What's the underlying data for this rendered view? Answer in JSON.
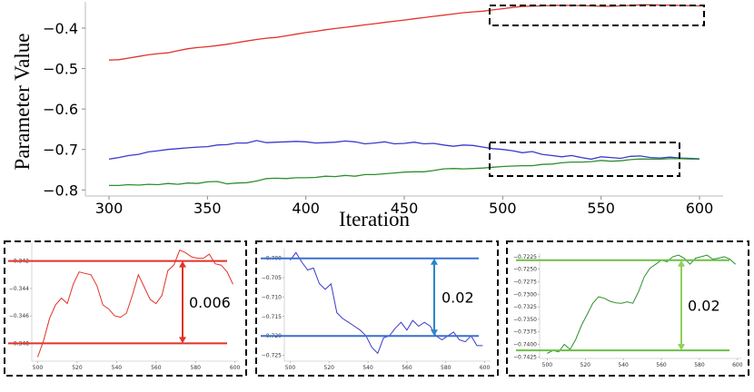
{
  "chart_data": [
    {
      "type": "line",
      "xlabel": "Iteration",
      "ylabel": "Parameter Value",
      "xlim": [
        288,
        612
      ],
      "ylim": [
        -0.815,
        -0.335
      ],
      "xticks": [
        300,
        350,
        400,
        450,
        500,
        550,
        600
      ],
      "yticks": [
        -0.4,
        -0.5,
        -0.6,
        -0.7,
        -0.8
      ],
      "ytick_labels": [
        "−0.4",
        "−0.5",
        "−0.6",
        "−0.7",
        "−0.8"
      ],
      "grid": false,
      "legend": "none",
      "series": [
        {
          "color": "#e0332a",
          "x": [
            300,
            305,
            310,
            315,
            320,
            325,
            330,
            335,
            340,
            345,
            350,
            355,
            360,
            365,
            370,
            375,
            380,
            385,
            390,
            395,
            400,
            405,
            410,
            415,
            420,
            425,
            430,
            435,
            440,
            445,
            450,
            455,
            460,
            465,
            470,
            475,
            480,
            485,
            490,
            495,
            500,
            505,
            510,
            515,
            520,
            525,
            530,
            535,
            540,
            545,
            550,
            555,
            560,
            565,
            570,
            575,
            580,
            585,
            590,
            595,
            600
          ],
          "values": [
            -0.479,
            -0.478,
            -0.474,
            -0.47,
            -0.466,
            -0.463,
            -0.461,
            -0.456,
            -0.451,
            -0.448,
            -0.446,
            -0.443,
            -0.44,
            -0.436,
            -0.432,
            -0.428,
            -0.425,
            -0.423,
            -0.419,
            -0.415,
            -0.411,
            -0.408,
            -0.404,
            -0.401,
            -0.398,
            -0.395,
            -0.392,
            -0.389,
            -0.386,
            -0.383,
            -0.38,
            -0.377,
            -0.374,
            -0.371,
            -0.368,
            -0.365,
            -0.362,
            -0.36,
            -0.358,
            -0.355,
            -0.352,
            -0.349,
            -0.3465,
            -0.3455,
            -0.3452,
            -0.344,
            -0.3435,
            -0.344,
            -0.3445,
            -0.345,
            -0.346,
            -0.346,
            -0.345,
            -0.344,
            -0.3425,
            -0.3425,
            -0.343,
            -0.343,
            -0.344,
            -0.3445,
            -0.345
          ]
        },
        {
          "color": "#3a3acc",
          "x": [
            300,
            305,
            310,
            315,
            320,
            325,
            330,
            335,
            340,
            345,
            350,
            355,
            360,
            365,
            370,
            375,
            380,
            385,
            390,
            395,
            400,
            405,
            410,
            415,
            420,
            425,
            430,
            435,
            440,
            445,
            450,
            455,
            460,
            465,
            470,
            475,
            480,
            485,
            490,
            495,
            500,
            505,
            510,
            515,
            520,
            525,
            530,
            535,
            540,
            545,
            550,
            555,
            560,
            565,
            570,
            575,
            580,
            585,
            590,
            595,
            600
          ],
          "values": [
            -0.724,
            -0.72,
            -0.715,
            -0.712,
            -0.706,
            -0.703,
            -0.7,
            -0.698,
            -0.696,
            -0.694,
            -0.693,
            -0.689,
            -0.688,
            -0.684,
            -0.684,
            -0.678,
            -0.683,
            -0.682,
            -0.681,
            -0.68,
            -0.681,
            -0.684,
            -0.683,
            -0.682,
            -0.679,
            -0.681,
            -0.686,
            -0.684,
            -0.681,
            -0.686,
            -0.685,
            -0.682,
            -0.686,
            -0.685,
            -0.689,
            -0.692,
            -0.689,
            -0.69,
            -0.694,
            -0.698,
            -0.7,
            -0.703,
            -0.708,
            -0.705,
            -0.712,
            -0.715,
            -0.718,
            -0.715,
            -0.72,
            -0.724,
            -0.718,
            -0.72,
            -0.722,
            -0.717,
            -0.716,
            -0.72,
            -0.721,
            -0.719,
            -0.721,
            -0.722,
            -0.723
          ]
        },
        {
          "color": "#2f8f2f",
          "x": [
            300,
            305,
            310,
            315,
            320,
            325,
            330,
            335,
            340,
            345,
            350,
            355,
            360,
            365,
            370,
            375,
            380,
            385,
            390,
            395,
            400,
            405,
            410,
            415,
            420,
            425,
            430,
            435,
            440,
            445,
            450,
            455,
            460,
            465,
            470,
            475,
            480,
            485,
            490,
            495,
            500,
            505,
            510,
            515,
            520,
            525,
            530,
            535,
            540,
            545,
            550,
            555,
            560,
            565,
            570,
            575,
            580,
            585,
            590,
            595,
            600
          ],
          "values": [
            -0.789,
            -0.789,
            -0.787,
            -0.788,
            -0.786,
            -0.787,
            -0.784,
            -0.786,
            -0.783,
            -0.784,
            -0.78,
            -0.779,
            -0.785,
            -0.783,
            -0.782,
            -0.778,
            -0.772,
            -0.771,
            -0.772,
            -0.77,
            -0.77,
            -0.769,
            -0.766,
            -0.767,
            -0.764,
            -0.766,
            -0.762,
            -0.762,
            -0.76,
            -0.758,
            -0.756,
            -0.755,
            -0.755,
            -0.752,
            -0.748,
            -0.747,
            -0.748,
            -0.747,
            -0.746,
            -0.744,
            -0.742,
            -0.741,
            -0.74,
            -0.74,
            -0.737,
            -0.736,
            -0.733,
            -0.731,
            -0.731,
            -0.73,
            -0.727,
            -0.729,
            -0.728,
            -0.725,
            -0.7235,
            -0.724,
            -0.724,
            -0.7228,
            -0.7226,
            -0.7235,
            -0.7242
          ]
        }
      ]
    },
    {
      "type": "line",
      "xlim": [
        497,
        602
      ],
      "ylim": [
        -0.3493,
        -0.3407
      ],
      "xticks": [
        500,
        520,
        540,
        560,
        580,
        600
      ],
      "yticks": [
        -0.342,
        -0.344,
        -0.346,
        -0.348
      ],
      "ytick_labels": [
        "−0.342",
        "−0.344",
        "−0.346",
        "−0.348"
      ],
      "hlines": [
        -0.342,
        -0.348
      ],
      "annotation": "0.006",
      "series": [
        {
          "color": "#e0332a",
          "x": [
            500,
            503,
            506,
            509,
            512,
            515,
            518,
            521,
            524,
            527,
            530,
            533,
            536,
            539,
            542,
            545,
            548,
            551,
            554,
            557,
            560,
            563,
            566,
            569,
            572,
            575,
            578,
            581,
            584,
            587,
            590,
            593,
            596,
            599
          ],
          "values": [
            -0.349,
            -0.3478,
            -0.3462,
            -0.3452,
            -0.3447,
            -0.3451,
            -0.3437,
            -0.3428,
            -0.3429,
            -0.343,
            -0.3438,
            -0.3452,
            -0.3455,
            -0.346,
            -0.3461,
            -0.3458,
            -0.3445,
            -0.343,
            -0.3439,
            -0.3448,
            -0.3451,
            -0.3445,
            -0.3427,
            -0.3423,
            -0.3412,
            -0.3414,
            -0.3417,
            -0.3418,
            -0.3418,
            -0.3415,
            -0.3422,
            -0.3423,
            -0.3428,
            -0.3437
          ]
        }
      ]
    },
    {
      "type": "line",
      "xlim": [
        497,
        603
      ],
      "ylim": [
        -0.7265,
        -0.6975
      ],
      "xticks": [
        500,
        520,
        540,
        560,
        580,
        600
      ],
      "yticks": [
        -0.7,
        -0.705,
        -0.71,
        -0.715,
        -0.72,
        -0.725
      ],
      "ytick_labels": [
        "−0.700",
        "−0.705",
        "−0.710",
        "−0.715",
        "−0.720",
        "−0.725"
      ],
      "hlines": [
        -0.7,
        -0.72
      ],
      "annotation": "0.02",
      "series": [
        {
          "color": "#3a3acc",
          "x": [
            500,
            503,
            506,
            509,
            512,
            515,
            518,
            521,
            524,
            527,
            530,
            533,
            536,
            539,
            542,
            545,
            548,
            551,
            554,
            557,
            560,
            563,
            566,
            569,
            572,
            575,
            578,
            581,
            584,
            587,
            590,
            593,
            596,
            599
          ],
          "values": [
            -0.7005,
            -0.6985,
            -0.701,
            -0.703,
            -0.7025,
            -0.7065,
            -0.708,
            -0.7066,
            -0.714,
            -0.7155,
            -0.7165,
            -0.7175,
            -0.7185,
            -0.72,
            -0.723,
            -0.7245,
            -0.7205,
            -0.72,
            -0.718,
            -0.7165,
            -0.7185,
            -0.716,
            -0.7175,
            -0.7165,
            -0.7175,
            -0.72,
            -0.721,
            -0.72,
            -0.719,
            -0.721,
            -0.7215,
            -0.72,
            -0.7225,
            -0.7225
          ]
        }
      ]
    },
    {
      "type": "line",
      "xlim": [
        496,
        602
      ],
      "ylim": [
        -0.7428,
        -0.7218
      ],
      "xticks": [
        500,
        520,
        540,
        560,
        580,
        600
      ],
      "yticks": [
        -0.7225,
        -0.725,
        -0.7275,
        -0.73,
        -0.7325,
        -0.735,
        -0.7375,
        -0.74,
        -0.7425
      ],
      "ytick_labels": [
        "−0.7225",
        "−0.7250",
        "−0.7275",
        "−0.7300",
        "−0.7325",
        "−0.7350",
        "−0.7375",
        "−0.7400",
        "−0.7425"
      ],
      "hlines": [
        -0.7232,
        -0.7412
      ],
      "annotation": "0.02",
      "series": [
        {
          "color": "#2f8f2f",
          "x": [
            500,
            503,
            506,
            509,
            512,
            515,
            518,
            521,
            524,
            527,
            530,
            533,
            536,
            539,
            542,
            545,
            548,
            551,
            554,
            557,
            560,
            563,
            566,
            569,
            572,
            575,
            578,
            581,
            584,
            587,
            590,
            593,
            596,
            599
          ],
          "values": [
            -0.7418,
            -0.7412,
            -0.7415,
            -0.74,
            -0.741,
            -0.739,
            -0.7362,
            -0.734,
            -0.7318,
            -0.7305,
            -0.7308,
            -0.7314,
            -0.7317,
            -0.7318,
            -0.7315,
            -0.7318,
            -0.7295,
            -0.7265,
            -0.7248,
            -0.724,
            -0.7232,
            -0.7235,
            -0.7225,
            -0.7222,
            -0.7228,
            -0.724,
            -0.7228,
            -0.7225,
            -0.7222,
            -0.723,
            -0.7228,
            -0.7225,
            -0.723,
            -0.724
          ]
        }
      ]
    }
  ]
}
